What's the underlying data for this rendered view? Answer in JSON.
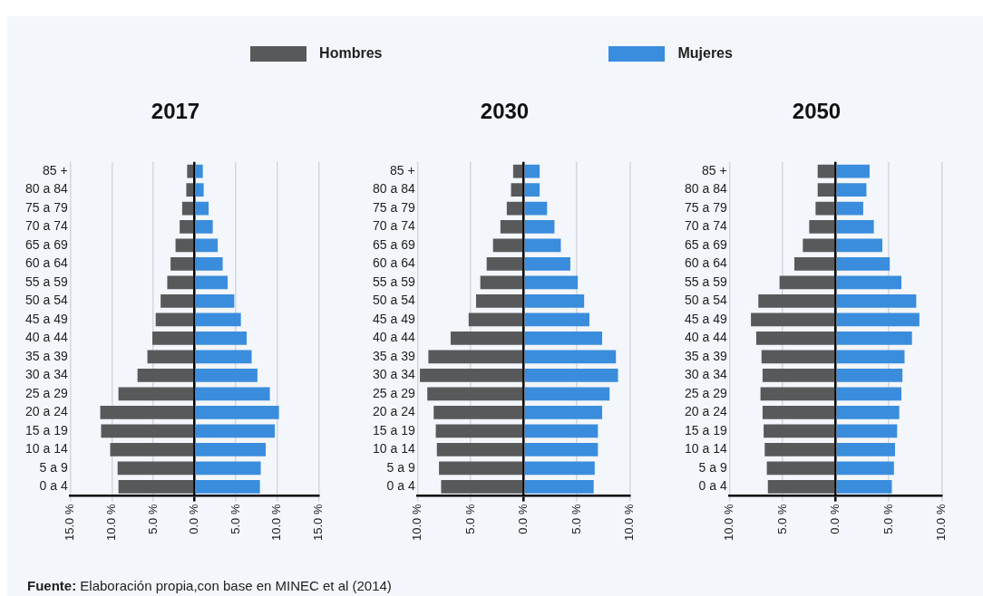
{
  "chart_data": [
    {
      "type": "bar",
      "title": "2017",
      "orientation": "horizontal",
      "stacked": true,
      "grid": "x",
      "legend": "top",
      "categories": [
        "85 +",
        "80 a 84",
        "75 a 79",
        "70 a 74",
        "65 a 69",
        "60 a 64",
        "55 a 59",
        "50 a 54",
        "45 a 49",
        "40 a 44",
        "35 a 39",
        "30 a 34",
        "25 a 29",
        "20 a 24",
        "15 a 19",
        "10 a 14",
        "5 a 9",
        "0 a 4"
      ],
      "series": [
        {
          "name": "Hombres",
          "color": "#58595b",
          "values": [
            -0.9,
            -1.0,
            -1.5,
            -1.8,
            -2.3,
            -2.9,
            -3.3,
            -4.1,
            -4.7,
            -5.1,
            -5.7,
            -6.9,
            -9.2,
            -11.4,
            -11.3,
            -10.2,
            -9.3,
            -9.2
          ]
        },
        {
          "name": "Mujeres",
          "color": "#3a8ddd",
          "values": [
            1.0,
            1.1,
            1.7,
            2.2,
            2.8,
            3.4,
            4.0,
            4.8,
            5.6,
            6.3,
            6.9,
            7.6,
            9.1,
            10.2,
            9.7,
            8.6,
            8.0,
            7.9
          ]
        }
      ],
      "xlim": [
        -15,
        15
      ],
      "xticks": [
        {
          "value": -15,
          "label": "15.0 %"
        },
        {
          "value": -10,
          "label": "10.0 %"
        },
        {
          "value": -5,
          "label": "5.0 %"
        },
        {
          "value": 0,
          "label": "0.0 %"
        },
        {
          "value": 5,
          "label": "5.0 %"
        },
        {
          "value": 10,
          "label": "10.0 %"
        },
        {
          "value": 15,
          "label": "15.0 %"
        }
      ],
      "annotations": [
        "Fuente: Elaboración propia,con base en MINEC et al (2014)"
      ]
    },
    {
      "type": "bar",
      "title": "2030",
      "orientation": "horizontal",
      "stacked": true,
      "grid": "x",
      "categories": [
        "85 +",
        "80 a 84",
        "75 a 79",
        "70 a 74",
        "65 a 69",
        "60 a 64",
        "55 a 59",
        "50 a 54",
        "45 a 49",
        "40 a 44",
        "35 a 39",
        "30 a 34",
        "25 a 29",
        "20 a 24",
        "15 a 19",
        "10 a 14",
        "5 a 9",
        "0 a 4"
      ],
      "series": [
        {
          "color": "#58595b",
          "values": [
            -1.0,
            -1.2,
            -1.6,
            -2.2,
            -2.9,
            -3.5,
            -4.1,
            -4.5,
            -5.2,
            -6.9,
            -9.0,
            -9.8,
            -9.1,
            -8.5,
            -8.3,
            -8.2,
            -8.0,
            -7.8
          ]
        },
        {
          "color": "#3a8ddd",
          "values": [
            1.5,
            1.5,
            2.2,
            2.9,
            3.5,
            4.4,
            5.1,
            5.7,
            6.2,
            7.4,
            8.7,
            8.9,
            8.1,
            7.4,
            7.0,
            7.0,
            6.7,
            6.6
          ]
        }
      ],
      "xlim": [
        -10,
        10
      ],
      "xticks": [
        {
          "value": -10,
          "label": "10.0 %"
        },
        {
          "value": -5,
          "label": "5.0 %"
        },
        {
          "value": 0,
          "label": "0.0 %"
        },
        {
          "value": 5,
          "label": "5.0 %"
        },
        {
          "value": 10,
          "label": "10.0 %"
        }
      ]
    },
    {
      "type": "bar",
      "title": "2050",
      "orientation": "horizontal",
      "stacked": true,
      "grid": "x",
      "categories": [
        "85 +",
        "80 a 84",
        "75 a 79",
        "70 a 74",
        "65 a 69",
        "60 a 64",
        "55 a 59",
        "50 a 54",
        "45 a 49",
        "40 a 44",
        "35 a 39",
        "30 a 34",
        "25 a 29",
        "20 a 24",
        "15 a 19",
        "10 a 14",
        "5 a 9",
        "0 a 4"
      ],
      "series": [
        {
          "color": "#58595b",
          "values": [
            -1.7,
            -1.7,
            -1.9,
            -2.5,
            -3.1,
            -3.9,
            -5.3,
            -7.3,
            -8.0,
            -7.5,
            -7.0,
            -6.9,
            -7.1,
            -6.9,
            -6.8,
            -6.7,
            -6.5,
            -6.4
          ]
        },
        {
          "color": "#3a8ddd",
          "values": [
            3.2,
            2.9,
            2.6,
            3.6,
            4.4,
            5.1,
            6.2,
            7.6,
            7.9,
            7.2,
            6.5,
            6.3,
            6.2,
            6.0,
            5.8,
            5.6,
            5.5,
            5.3
          ]
        }
      ],
      "xlim": [
        -10,
        10
      ],
      "xticks": [
        {
          "value": -10,
          "label": "10.0 %"
        },
        {
          "value": -5,
          "label": "5.0 %"
        },
        {
          "value": 0,
          "label": "0.0 %"
        },
        {
          "value": 5,
          "label": "5.0 %"
        },
        {
          "value": 10,
          "label": "10.0 %"
        }
      ]
    }
  ]
}
